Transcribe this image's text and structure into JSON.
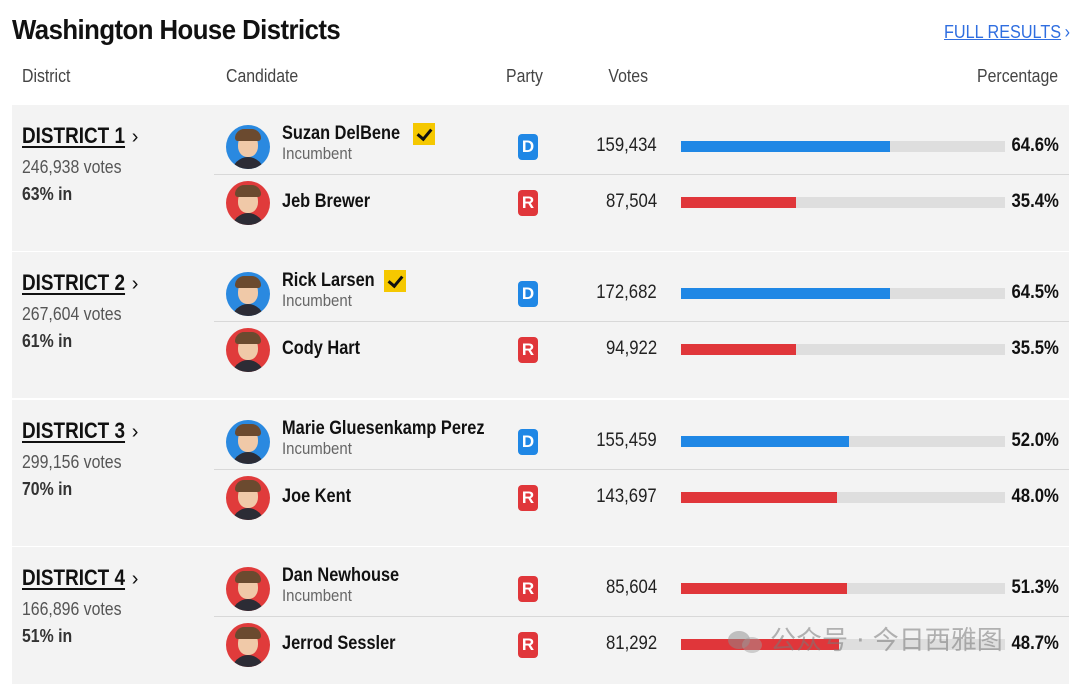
{
  "title": "Washington House Districts",
  "full_results_label": "FULL RESULTS",
  "columns": {
    "district": "District",
    "candidate": "Candidate",
    "party": "Party",
    "votes": "Votes",
    "percentage": "Percentage"
  },
  "colors": {
    "democrat": "#1f87e5",
    "republican": "#e0363a",
    "winner_check": "#f5c800",
    "link": "#2f6ee0"
  },
  "districts": [
    {
      "name": "DISTRICT 1",
      "total_votes": "246,938 votes",
      "reporting": "63% in",
      "candidates": [
        {
          "name": "Suzan DelBene",
          "status": "Incumbent",
          "winner": true,
          "party": "D",
          "votes": "159,434",
          "percentage": "64.6%",
          "share": 0.646
        },
        {
          "name": "Jeb Brewer",
          "status": "",
          "winner": false,
          "party": "R",
          "votes": "87,504",
          "percentage": "35.4%",
          "share": 0.354
        }
      ]
    },
    {
      "name": "DISTRICT 2",
      "total_votes": "267,604 votes",
      "reporting": "61% in",
      "candidates": [
        {
          "name": "Rick Larsen",
          "status": "Incumbent",
          "winner": true,
          "party": "D",
          "votes": "172,682",
          "percentage": "64.5%",
          "share": 0.645
        },
        {
          "name": "Cody Hart",
          "status": "",
          "winner": false,
          "party": "R",
          "votes": "94,922",
          "percentage": "35.5%",
          "share": 0.355
        }
      ]
    },
    {
      "name": "DISTRICT 3",
      "total_votes": "299,156 votes",
      "reporting": "70% in",
      "candidates": [
        {
          "name": "Marie Gluesenkamp Perez",
          "status": "Incumbent",
          "winner": false,
          "party": "D",
          "votes": "155,459",
          "percentage": "52.0%",
          "share": 0.52
        },
        {
          "name": "Joe Kent",
          "status": "",
          "winner": false,
          "party": "R",
          "votes": "143,697",
          "percentage": "48.0%",
          "share": 0.48
        }
      ]
    },
    {
      "name": "DISTRICT 4",
      "total_votes": "166,896 votes",
      "reporting": "51% in",
      "candidates": [
        {
          "name": "Dan Newhouse",
          "status": "Incumbent",
          "winner": false,
          "party": "R",
          "votes": "85,604",
          "percentage": "51.3%",
          "share": 0.513
        },
        {
          "name": "Jerrod Sessler",
          "status": "",
          "winner": false,
          "party": "R",
          "votes": "81,292",
          "percentage": "48.7%",
          "share": 0.487
        }
      ]
    }
  ],
  "watermark": "公众号 · 今日西雅图"
}
